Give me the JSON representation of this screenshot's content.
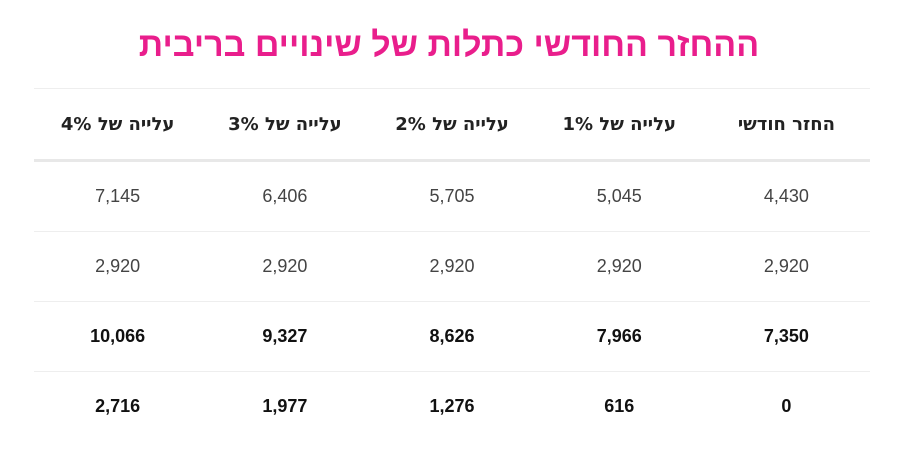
{
  "title": "ההחזר החודשי כתלות של שינויים בריבית",
  "table": {
    "header": [
      "החזר חודשי",
      "עלייה של 1%",
      "עלייה של 2%",
      "עלייה של 3%",
      "עלייה של 4%"
    ],
    "rows": [
      [
        "4,430",
        "5,045",
        "5,705",
        "6,406",
        "7,145"
      ],
      [
        "2,920",
        "2,920",
        "2,920",
        "2,920",
        "2,920"
      ],
      [
        "7,350",
        "7,966",
        "8,626",
        "9,327",
        "10,066"
      ],
      [
        "0",
        "616",
        "1,276",
        "1,977",
        "2,716"
      ]
    ]
  }
}
